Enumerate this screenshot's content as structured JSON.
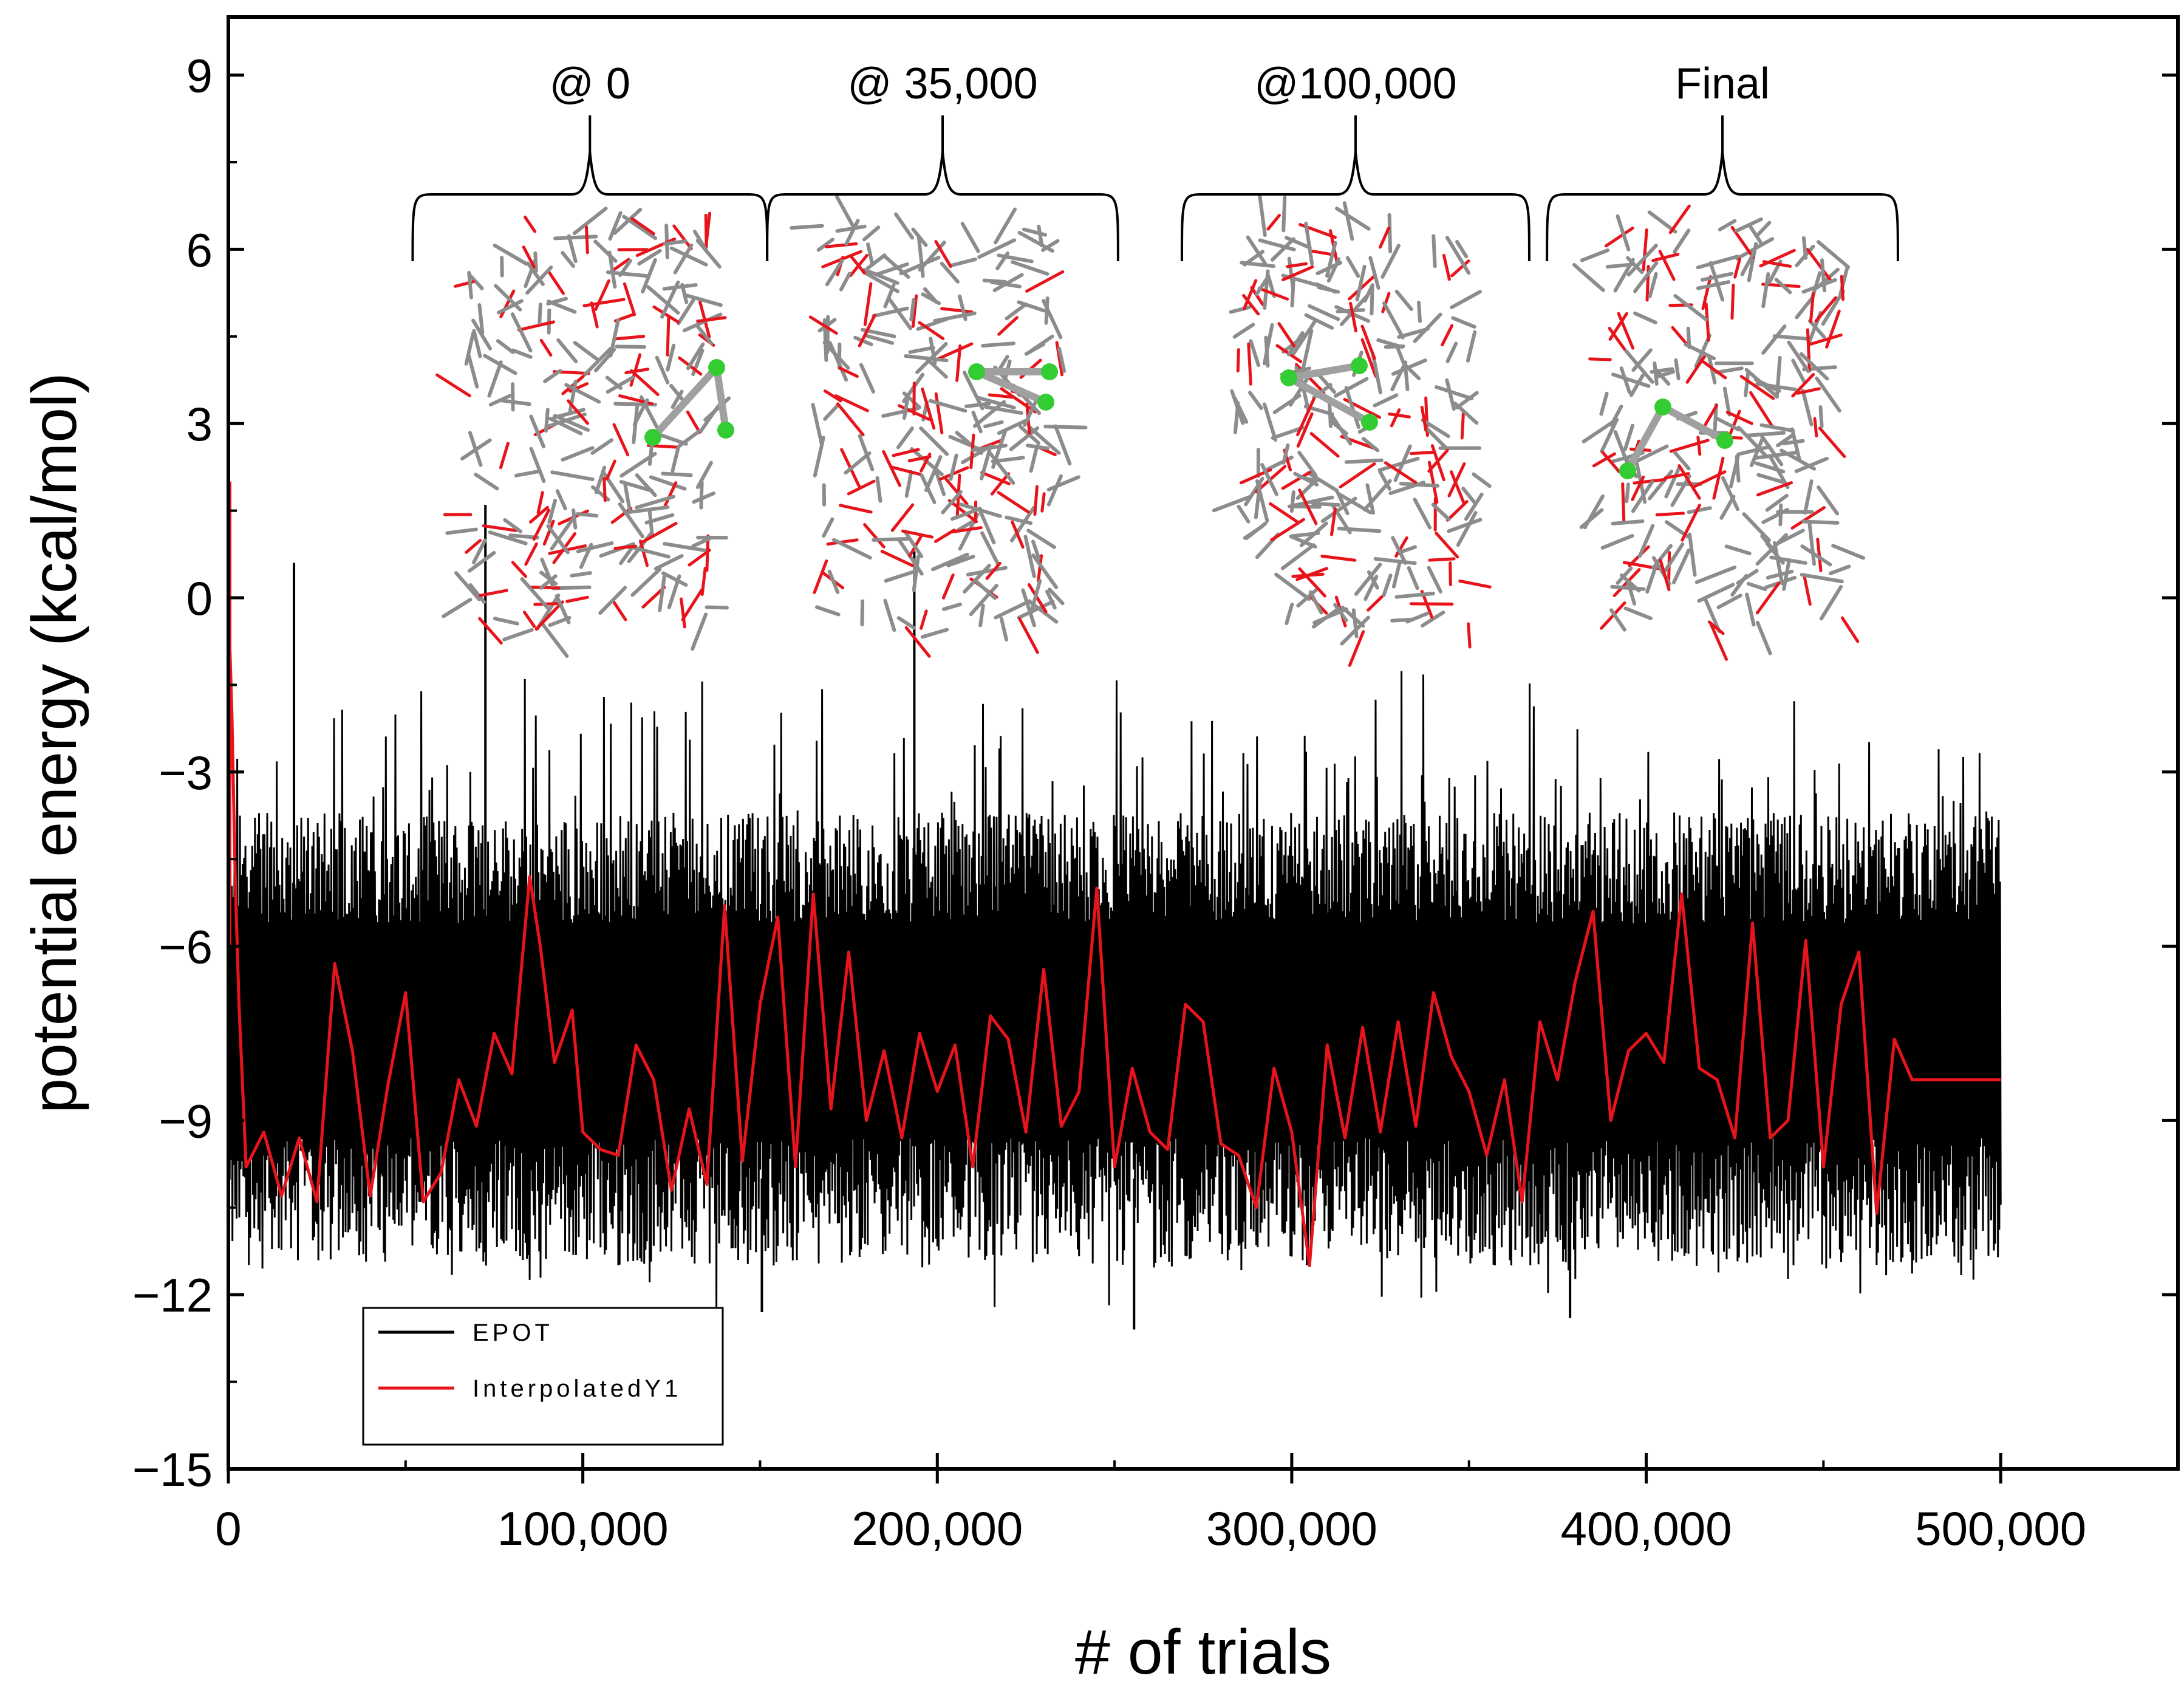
{
  "chart_data": {
    "type": "line",
    "title": "",
    "xlabel": "# of trials",
    "ylabel": "potential energy (kcal/mol)",
    "xlim": [
      0,
      550000
    ],
    "ylim": [
      -15,
      10
    ],
    "x_ticks": [
      0,
      100000,
      200000,
      300000,
      400000,
      500000
    ],
    "x_tick_labels": [
      "0",
      "100,000",
      "200,000",
      "300,000",
      "400,000",
      "500,000"
    ],
    "y_ticks": [
      9,
      6,
      3,
      0,
      -3,
      -6,
      -9,
      -12,
      -15
    ],
    "y_tick_labels": [
      "9",
      "6",
      "3",
      "0",
      "−3",
      "−6",
      "−9",
      "−12",
      "−15"
    ],
    "grid": false,
    "legend": {
      "position": "bottom-left",
      "entries": [
        {
          "name": "EPOT",
          "color": "#000000"
        },
        {
          "name": "InterpolatedY1",
          "color": "#e8141b"
        }
      ]
    },
    "series": [
      {
        "name": "EPOT",
        "color": "#000000",
        "style": "dense-noise",
        "x_range": [
          0,
          500000
        ],
        "typical_band": [
          -11.2,
          -4
        ],
        "spikes": [
          {
            "x": 0,
            "y": 2.0
          },
          {
            "x": 72000,
            "y": 1.6
          },
          {
            "x": 18000,
            "y": 0.6
          },
          {
            "x": 193000,
            "y": 0.8
          },
          {
            "x": 150000,
            "y": -12.3
          },
          {
            "x": 255000,
            "y": -12.6
          },
          {
            "x": 378000,
            "y": -12.4
          }
        ]
      },
      {
        "name": "InterpolatedY1",
        "color": "#e8141b",
        "x": [
          0,
          1000,
          2000,
          3000,
          5000,
          10000,
          15000,
          20000,
          25000,
          30000,
          35000,
          40000,
          45000,
          50000,
          55000,
          60000,
          65000,
          70000,
          75000,
          80000,
          85000,
          88000,
          92000,
          97000,
          100000,
          105000,
          110000,
          115000,
          120000,
          125000,
          130000,
          135000,
          140000,
          145000,
          150000,
          155000,
          160000,
          165000,
          170000,
          175000,
          180000,
          185000,
          190000,
          195000,
          200000,
          205000,
          210000,
          215000,
          220000,
          225000,
          230000,
          235000,
          240000,
          245000,
          250000,
          255000,
          260000,
          265000,
          270000,
          275000,
          280000,
          285000,
          290000,
          295000,
          300000,
          305000,
          310000,
          315000,
          320000,
          325000,
          330000,
          335000,
          340000,
          345000,
          350000,
          355000,
          360000,
          365000,
          370000,
          375000,
          380000,
          385000,
          390000,
          395000,
          400000,
          405000,
          410000,
          415000,
          420000,
          425000,
          430000,
          435000,
          440000,
          445000,
          450000,
          455000,
          460000,
          465000,
          470000,
          475000,
          480000,
          485000,
          490000,
          495000,
          500000
        ],
        "values": [
          0,
          -2,
          -5,
          -7,
          -9.8,
          -9.2,
          -10.3,
          -9.3,
          -10.4,
          -6.3,
          -7.8,
          -10.3,
          -8.4,
          -6.8,
          -10.4,
          -9.9,
          -8.3,
          -9.1,
          -7.5,
          -8.2,
          -4.8,
          -6.0,
          -8.0,
          -7.1,
          -9.2,
          -9.5,
          -9.6,
          -7.7,
          -8.3,
          -10.2,
          -8.8,
          -10.1,
          -5.3,
          -9.7,
          -7.0,
          -5.5,
          -9.8,
          -5.1,
          -8.8,
          -6.1,
          -9.0,
          -7.8,
          -9.3,
          -7.5,
          -8.5,
          -7.7,
          -9.8,
          -7.2,
          -7.6,
          -9.2,
          -6.4,
          -9.1,
          -8.5,
          -5.0,
          -9.8,
          -8.1,
          -9.2,
          -9.5,
          -7.0,
          -7.3,
          -9.4,
          -9.6,
          -10.5,
          -8.1,
          -9.2,
          -11.5,
          -7.7,
          -9.3,
          -7.4,
          -9.2,
          -7.3,
          -9.1,
          -6.8,
          -7.9,
          -8.5,
          -9.6,
          -8.3,
          -10.4,
          -7.3,
          -8.3,
          -6.6,
          -5.4,
          -9.0,
          -7.8,
          -7.5,
          -8.0,
          -5.1,
          -8.1,
          -8.3,
          -9.3,
          -5.6,
          -9.3,
          -9.0,
          -5.9,
          -9.8,
          -7.0,
          -6.1,
          -10.6,
          -7.6,
          -8.3,
          -8.3,
          -8.3,
          -8.3,
          -8.3,
          -8.3
        ]
      }
    ],
    "annotations": [
      {
        "label": "@ 0",
        "x_span": [
          52000,
          152000
        ]
      },
      {
        "label": "@ 35,000",
        "x_span": [
          152000,
          251000
        ]
      },
      {
        "label": "@100,000",
        "x_span": [
          269000,
          367000
        ]
      },
      {
        "label": "Final",
        "x_span": [
          372000,
          471000
        ]
      }
    ]
  },
  "colors": {
    "background": "#ffffff",
    "axis": "#000000",
    "epot": "#000000",
    "interpolated": "#e8141b",
    "molecule_bond": "#8c8c8c",
    "molecule_oxygen": "#e8141b",
    "molecule_chlorine": "#33cc33"
  }
}
